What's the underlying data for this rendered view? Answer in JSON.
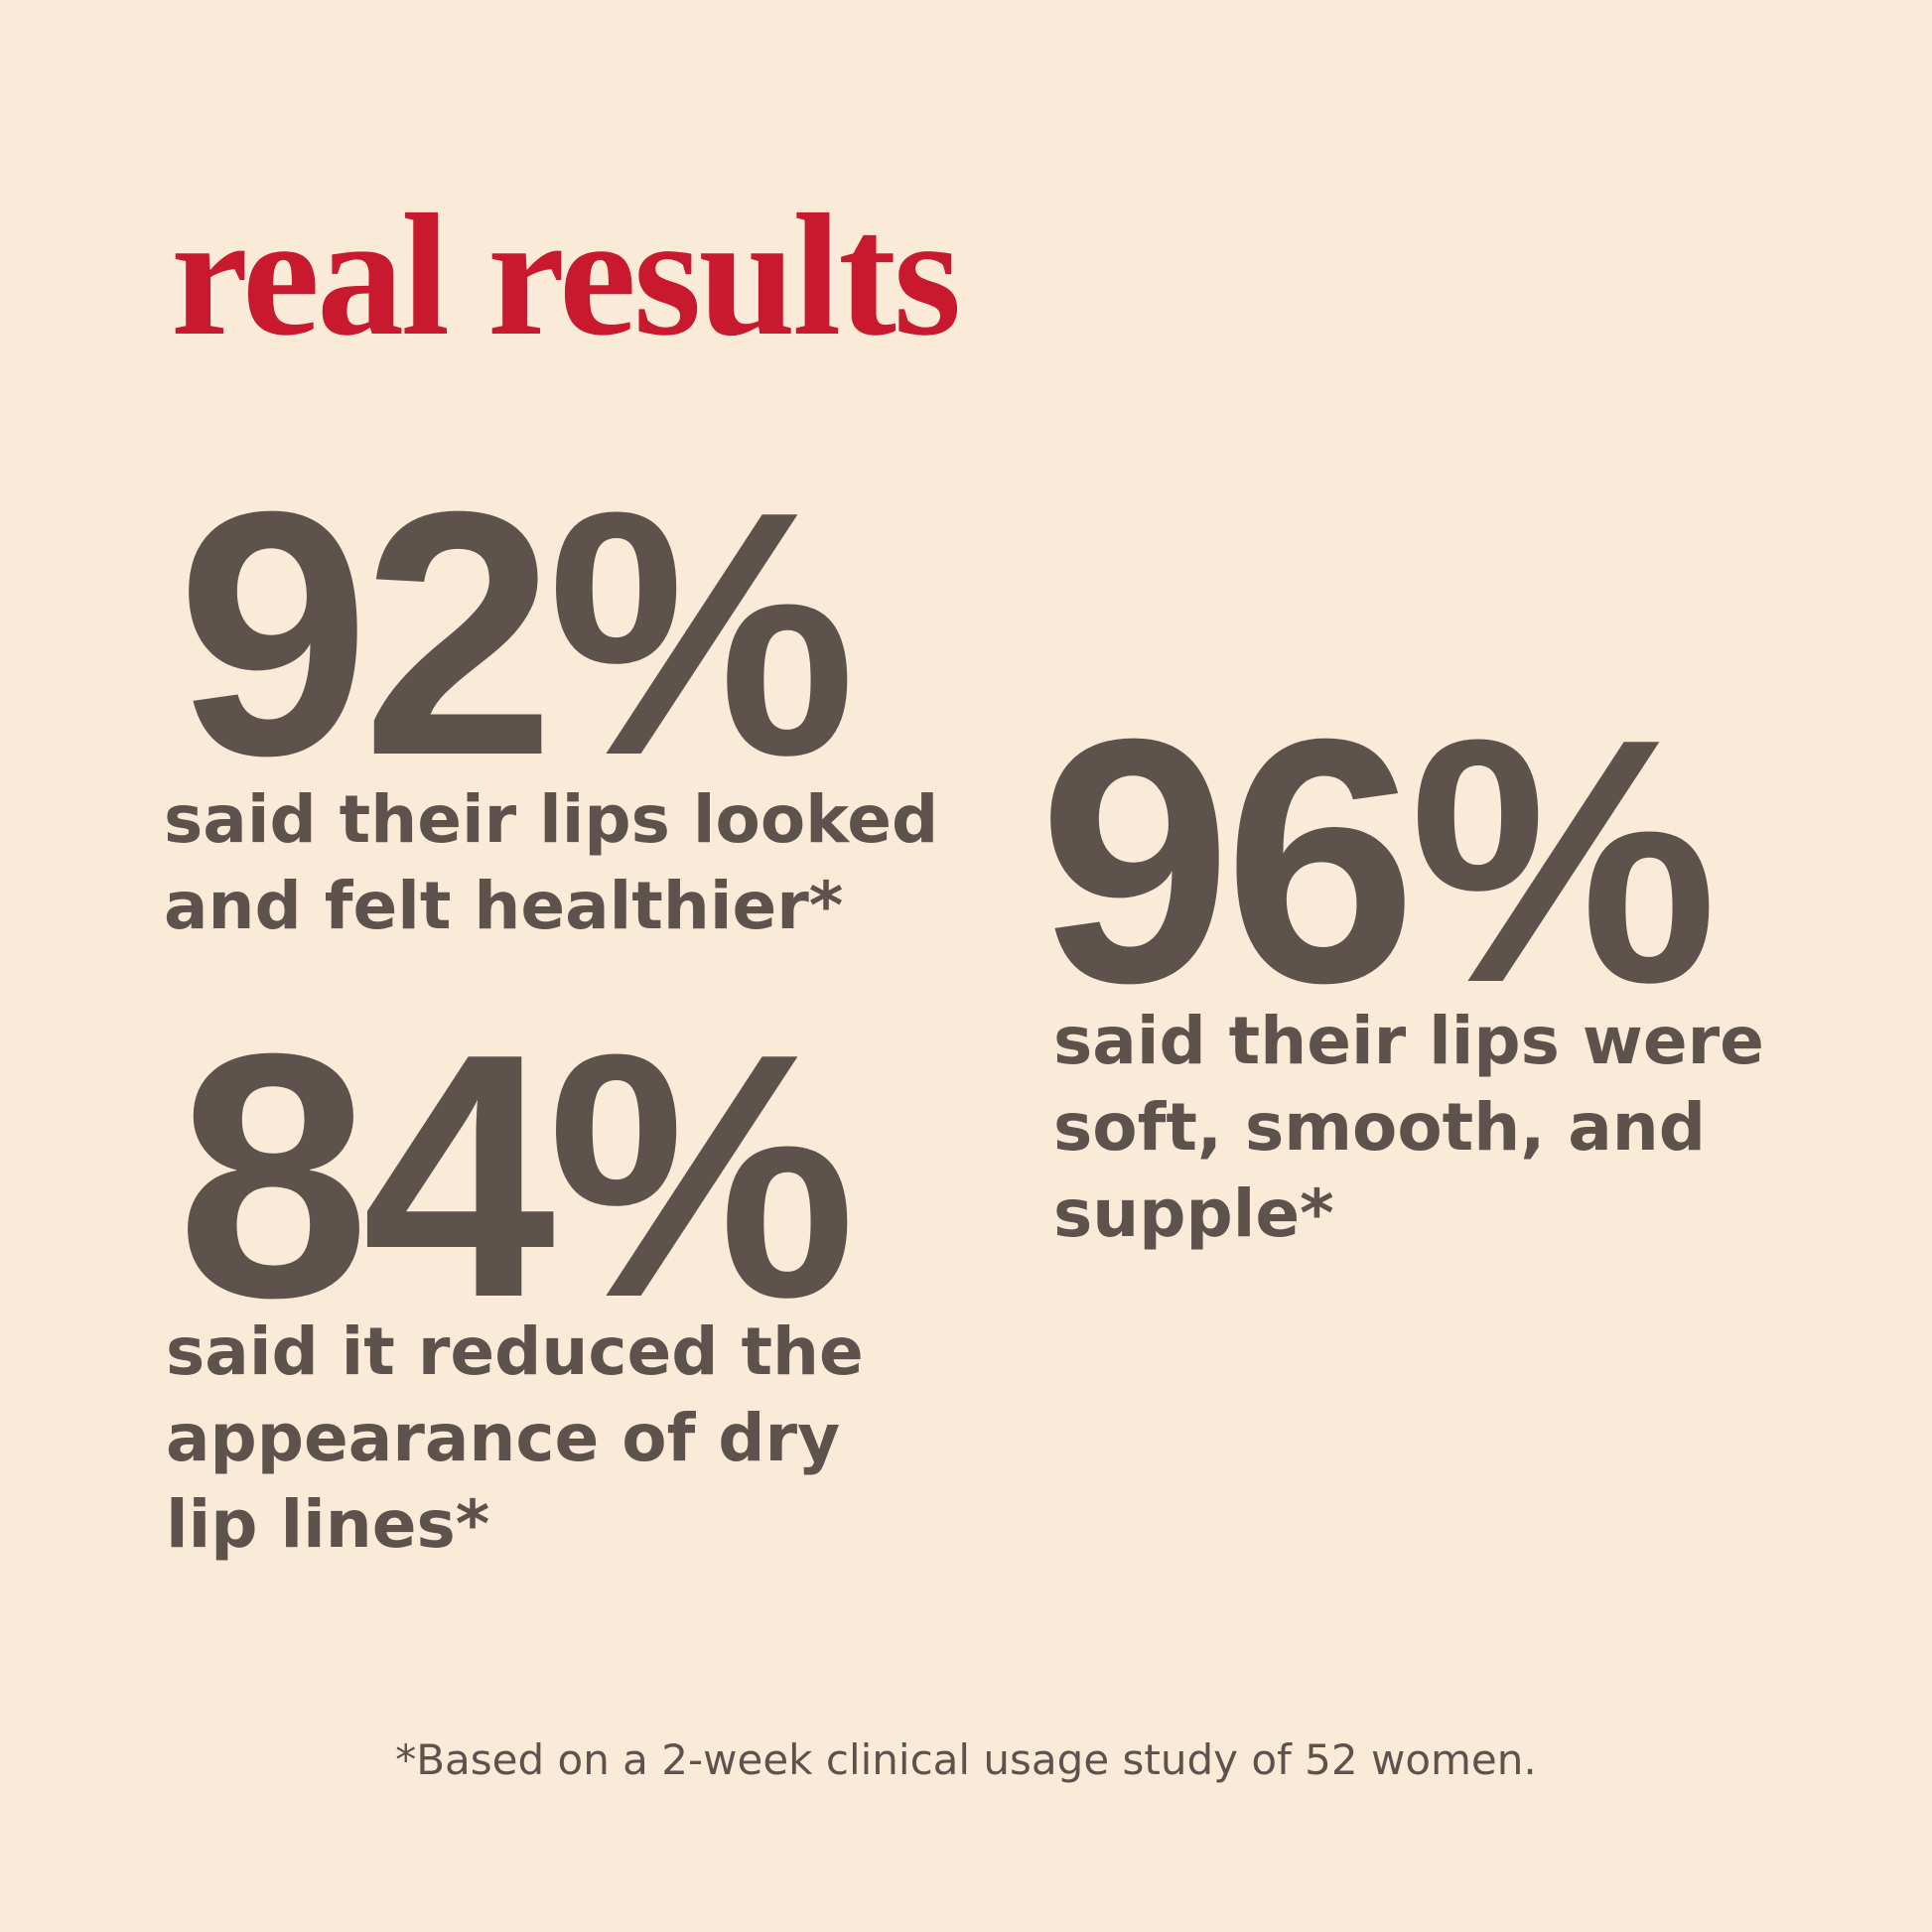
{
  "title": "real results",
  "stats": [
    {
      "value": "92%",
      "caption_lines": [
        "said their lips looked",
        "and felt healthier*"
      ]
    },
    {
      "value": "96%",
      "caption_lines": [
        "said their lips were",
        "soft, smooth, and",
        "supple*"
      ]
    },
    {
      "value": "84%",
      "caption_lines": [
        "said it reduced the",
        "appearance of dry",
        "lip lines*"
      ]
    }
  ],
  "footnote": "*Based on a 2-week clinical usage study of 52 women.",
  "colors": {
    "background": "#FAEBD9",
    "accent": "#C8192E",
    "text": "#5E524D"
  }
}
